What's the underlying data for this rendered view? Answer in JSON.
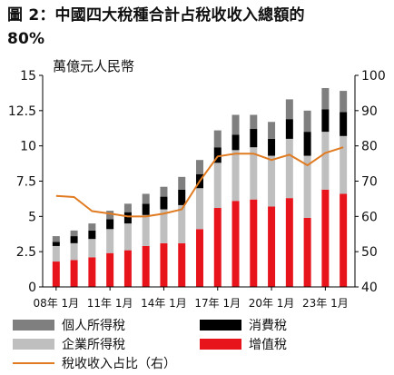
{
  "title_line1": "圖 2：中國四大稅種合計占稅收收入總額的",
  "title_line2": "80%",
  "colors": {
    "individual": "#7f7f7f",
    "consumption": "#000000",
    "corporate": "#bfbfbf",
    "vat": "#e8141c",
    "ratio_line": "#e07b22",
    "axis": "#000000"
  },
  "legend": {
    "individual": "個人所得稅",
    "consumption": "消費稅",
    "corporate": "企業所得稅",
    "vat": "增值稅",
    "ratio": "稅收收入占比（右）"
  },
  "chart_data": {
    "type": "bar",
    "stacked": true,
    "unit_label": "萬億元人民幣",
    "x": [
      "08年",
      "09年",
      "10年",
      "11年",
      "12年",
      "13年",
      "14年",
      "15年",
      "16年",
      "17年",
      "18年",
      "19年",
      "20年",
      "21年",
      "22年",
      "23年",
      "24年"
    ],
    "x_tick_labels": [
      "08年 1月",
      "11年 1月",
      "14年 1月",
      "17年 1月",
      "20年 1月",
      "23年 1月"
    ],
    "ylim": [
      0,
      15
    ],
    "y_ticks": [
      "0",
      "2.5",
      "5",
      "7.5",
      "10",
      "12.5",
      "15"
    ],
    "y2lim": [
      40,
      100
    ],
    "y2_ticks": [
      "40",
      "50",
      "60",
      "70",
      "80",
      "90",
      "100"
    ],
    "series": [
      {
        "name": "增值稅",
        "key": "vat",
        "values": [
          1.8,
          1.9,
          2.1,
          2.4,
          2.6,
          2.9,
          3.1,
          3.1,
          4.1,
          5.6,
          6.1,
          6.2,
          5.7,
          6.3,
          4.9,
          6.9,
          6.6
        ]
      },
      {
        "name": "企業所得稅",
        "key": "corporate",
        "values": [
          1.1,
          1.2,
          1.3,
          1.7,
          1.9,
          2.2,
          2.4,
          2.7,
          2.9,
          3.2,
          3.6,
          3.7,
          3.6,
          4.2,
          4.4,
          4.1,
          4.1
        ]
      },
      {
        "name": "消費稅",
        "key": "consumption",
        "values": [
          0.3,
          0.5,
          0.6,
          0.7,
          0.8,
          0.8,
          0.9,
          1.1,
          1.0,
          1.1,
          1.1,
          1.3,
          1.2,
          1.4,
          1.7,
          1.6,
          1.7
        ]
      },
      {
        "name": "個人所得稅",
        "key": "individual",
        "values": [
          0.4,
          0.4,
          0.5,
          0.6,
          0.6,
          0.7,
          0.7,
          0.9,
          1.0,
          1.2,
          1.4,
          1.0,
          1.2,
          1.4,
          1.5,
          1.5,
          1.5
        ]
      }
    ],
    "line": {
      "name": "稅收收入占比（右）",
      "axis": "right",
      "points": [
        {
          "x": 0.0,
          "y": 65.8
        },
        {
          "x": 1.0,
          "y": 65.5
        },
        {
          "x": 2.0,
          "y": 61.5
        },
        {
          "x": 3.0,
          "y": 60.8
        },
        {
          "x": 4.0,
          "y": 60.0
        },
        {
          "x": 5.0,
          "y": 60.0
        },
        {
          "x": 6.0,
          "y": 60.8
        },
        {
          "x": 7.0,
          "y": 62.0
        },
        {
          "x": 8.0,
          "y": 70.0
        },
        {
          "x": 9.0,
          "y": 77.0
        },
        {
          "x": 10.0,
          "y": 77.8
        },
        {
          "x": 11.0,
          "y": 77.8
        },
        {
          "x": 12.0,
          "y": 76.0
        },
        {
          "x": 13.0,
          "y": 77.5
        },
        {
          "x": 14.0,
          "y": 74.5
        },
        {
          "x": 15.0,
          "y": 78.0
        },
        {
          "x": 16.0,
          "y": 79.6
        }
      ]
    },
    "grid": false
  }
}
